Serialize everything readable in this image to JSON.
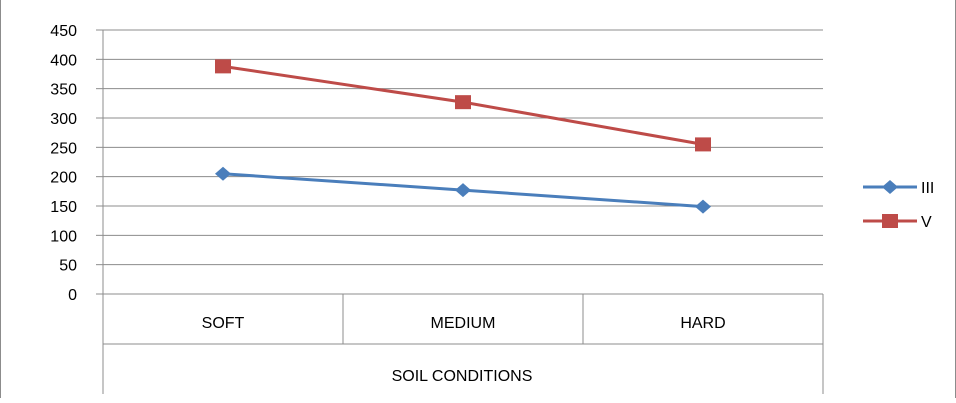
{
  "chart_data": {
    "type": "line",
    "categories": [
      "SOFT",
      "MEDIUM",
      "HARD"
    ],
    "xlabel": "SOIL CONDITIONS",
    "ylabel": "",
    "title": "",
    "ylim": [
      0,
      450
    ],
    "yticks": [
      0,
      50,
      100,
      150,
      200,
      250,
      300,
      350,
      400,
      450
    ],
    "grid": true,
    "legend_position": "right",
    "series": [
      {
        "name": "III",
        "values": [
          205,
          177,
          149
        ],
        "color": "#4a7ebb",
        "marker": "diamond"
      },
      {
        "name": "V",
        "values": [
          388,
          327,
          255
        ],
        "color": "#be4b48",
        "marker": "square"
      }
    ]
  }
}
